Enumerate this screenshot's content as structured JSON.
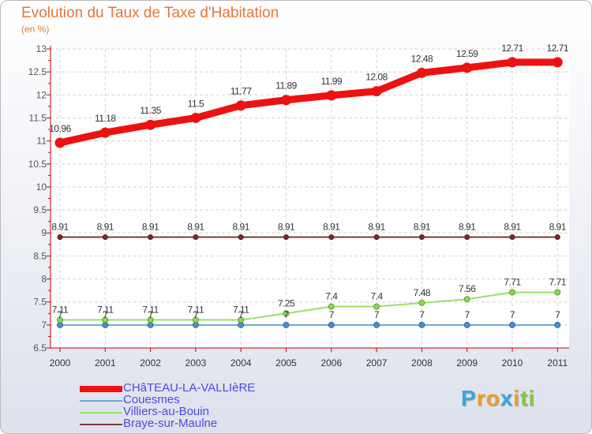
{
  "chart_data": {
    "type": "line",
    "title": "Evolution du Taux de Taxe d'Habitation",
    "ylabel": "(en %)",
    "xlabel": "",
    "x": [
      "2000",
      "2001",
      "2002",
      "2003",
      "2004",
      "2005",
      "2006",
      "2007",
      "2008",
      "2009",
      "2010",
      "2011"
    ],
    "ylim": [
      6.5,
      13
    ],
    "yticks": [
      "6.5",
      "7",
      "7.5",
      "8",
      "8.5",
      "9",
      "9.5",
      "10",
      "10.5",
      "11",
      "11.5",
      "12",
      "12.5",
      "13"
    ],
    "series": [
      {
        "name": "CHâTEAU-LA-VALLIèRE",
        "color": "#ee1111",
        "values": [
          10.96,
          11.18,
          11.35,
          11.5,
          11.77,
          11.89,
          11.99,
          12.08,
          12.48,
          12.59,
          12.71,
          12.71
        ],
        "labels": [
          "10.96",
          "11.18",
          "11.35",
          "11.5",
          "11.77",
          "11.89",
          "11.99",
          "12.08",
          "12.48",
          "12.59",
          "12.71",
          "12.71"
        ]
      },
      {
        "name": "Couesmes",
        "color": "#6fa3d6",
        "values": [
          7,
          7,
          7,
          7,
          7,
          7,
          7,
          7,
          7,
          7,
          7,
          7
        ],
        "labels": [
          "7",
          "7",
          "7",
          "7",
          "7",
          "7",
          "7",
          "7",
          "7",
          "7",
          "7",
          "7"
        ]
      },
      {
        "name": "Villiers-au-Bouin",
        "color": "#99e06a",
        "values": [
          7.11,
          7.11,
          7.11,
          7.11,
          7.11,
          7.25,
          7.4,
          7.4,
          7.48,
          7.56,
          7.71,
          7.71
        ],
        "labels": [
          "7.11",
          "7.11",
          "7.11",
          "7.11",
          "7.11",
          "7.25",
          "7.4",
          "7.4",
          "7.48",
          "7.56",
          "7.71",
          "7.71"
        ]
      },
      {
        "name": "Braye-sur-Maulne",
        "color": "#7a3b3b",
        "values": [
          8.91,
          8.91,
          8.91,
          8.91,
          8.91,
          8.91,
          8.91,
          8.91,
          8.91,
          8.91,
          8.91,
          8.91
        ],
        "labels": [
          "8.91",
          "8.91",
          "8.91",
          "8.91",
          "8.91",
          "8.91",
          "8.91",
          "8.91",
          "8.91",
          "8.91",
          "8.91",
          "8.91"
        ]
      }
    ]
  },
  "logo": {
    "letters": [
      "P",
      "r",
      "o",
      "x",
      "i",
      "t",
      "i"
    ],
    "colors": [
      "#3aa6d8",
      "#f39a1f",
      "#f39a1f",
      "#3aa6d8",
      "#f39a1f",
      "#8cc63f",
      "#8cc63f"
    ]
  }
}
